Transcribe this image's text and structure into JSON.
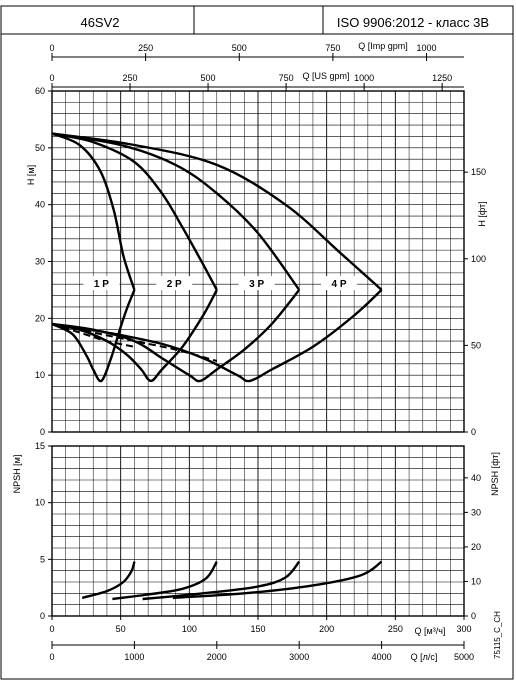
{
  "header": {
    "model": "46SV2",
    "standard": "ISO 9906:2012 - класс 3B"
  },
  "side_code": "75115_C_CH",
  "chart_data": {
    "type": "line",
    "axes": {
      "q_m3h": {
        "label": "Q [м³/ч]",
        "range": [
          0,
          300
        ],
        "ticks": [
          0,
          50,
          100,
          150,
          200,
          250,
          300
        ]
      },
      "q_ls": {
        "label": "Q [л/с]",
        "range": [
          0,
          5000
        ],
        "ticks": [
          0,
          1000,
          2000,
          3000,
          4000,
          5000
        ]
      },
      "q_us_gpm": {
        "label": "Q [US gpm]",
        "range": [
          0,
          1320
        ],
        "ticks": [
          0,
          250,
          500,
          750,
          1000,
          1250
        ]
      },
      "q_imp_gpm": {
        "label": "Q [Imp gpm]",
        "range": [
          0,
          1100
        ],
        "ticks": [
          0,
          250,
          500,
          750,
          1000
        ]
      },
      "head_m": {
        "label": "H [м]",
        "range": [
          0,
          60
        ],
        "ticks": [
          0,
          10,
          20,
          30,
          40,
          50,
          60
        ]
      },
      "head_ft": {
        "label": "H [фт]",
        "ticks": [
          0,
          50,
          100,
          150
        ]
      },
      "npsh_m": {
        "label": "NPSH [м]",
        "range": [
          0,
          15
        ],
        "ticks": [
          0,
          5,
          10,
          15
        ]
      },
      "npsh_ft": {
        "label": "NPSH [фт]",
        "ticks": [
          0,
          10,
          20,
          30,
          40
        ]
      }
    },
    "grid": true,
    "head_series": [
      {
        "name": "1 P",
        "label_at": [
          36,
          25.5
        ],
        "curve": [
          [
            0,
            52.5
          ],
          [
            20,
            50.5
          ],
          [
            35,
            46
          ],
          [
            45,
            39
          ],
          [
            52,
            31
          ],
          [
            60,
            25
          ]
        ],
        "envelope": [
          [
            0,
            19
          ],
          [
            15,
            17.2
          ],
          [
            25,
            13.5
          ],
          [
            30,
            11
          ],
          [
            36,
            9
          ],
          [
            43,
            13
          ],
          [
            50,
            18.5
          ],
          [
            55,
            22
          ],
          [
            60,
            25
          ]
        ]
      },
      {
        "name": "2 P",
        "label_at": [
          89,
          25.5
        ],
        "curve": [
          [
            0,
            52.5
          ],
          [
            30,
            51
          ],
          [
            60,
            47.5
          ],
          [
            80,
            42
          ],
          [
            95,
            36
          ],
          [
            110,
            29.5
          ],
          [
            120,
            25
          ]
        ],
        "envelope": [
          [
            0,
            19
          ],
          [
            20,
            18
          ],
          [
            40,
            16
          ],
          [
            55,
            13.5
          ],
          [
            65,
            11
          ],
          [
            72,
            9
          ],
          [
            80,
            11
          ],
          [
            95,
            15
          ],
          [
            110,
            20.5
          ],
          [
            120,
            25
          ]
        ]
      },
      {
        "name": "3 P",
        "label_at": [
          149,
          25.5
        ],
        "curve": [
          [
            0,
            52.5
          ],
          [
            50,
            50.5
          ],
          [
            90,
            47
          ],
          [
            120,
            42
          ],
          [
            150,
            35
          ],
          [
            180,
            25
          ]
        ],
        "envelope": [
          [
            0,
            19
          ],
          [
            30,
            18
          ],
          [
            60,
            16
          ],
          [
            80,
            13
          ],
          [
            100,
            10
          ],
          [
            108,
            9
          ],
          [
            120,
            11
          ],
          [
            140,
            14.5
          ],
          [
            160,
            19
          ],
          [
            180,
            25
          ]
        ]
      },
      {
        "name": "4 P",
        "label_at": [
          209,
          25.5
        ],
        "curve": [
          [
            0,
            52.5
          ],
          [
            60,
            50.5
          ],
          [
            120,
            47
          ],
          [
            170,
            40
          ],
          [
            210,
            31.5
          ],
          [
            240,
            25
          ]
        ],
        "envelope": [
          [
            0,
            19
          ],
          [
            40,
            17.5
          ],
          [
            80,
            15.5
          ],
          [
            110,
            13
          ],
          [
            135,
            10
          ],
          [
            144,
            9
          ],
          [
            160,
            11
          ],
          [
            190,
            15
          ],
          [
            220,
            20.5
          ],
          [
            240,
            25
          ]
        ]
      }
    ],
    "npsh_dashed": [
      [
        [
          0,
          19
        ],
        [
          20,
          17.5
        ],
        [
          40,
          16
        ],
        [
          60,
          15
        ]
      ],
      [
        [
          0,
          19
        ],
        [
          30,
          17.5
        ],
        [
          60,
          16
        ],
        [
          90,
          14.5
        ],
        [
          120,
          12.5
        ]
      ]
    ],
    "npsh_series": [
      [
        [
          22,
          1.6
        ],
        [
          40,
          2.2
        ],
        [
          52,
          3
        ],
        [
          58,
          4
        ],
        [
          60,
          4.8
        ]
      ],
      [
        [
          44,
          1.5
        ],
        [
          70,
          1.9
        ],
        [
          95,
          2.4
        ],
        [
          112,
          3.3
        ],
        [
          120,
          4.8
        ]
      ],
      [
        [
          66,
          1.5
        ],
        [
          110,
          2
        ],
        [
          150,
          2.6
        ],
        [
          170,
          3.4
        ],
        [
          180,
          4.8
        ]
      ],
      [
        [
          88,
          1.6
        ],
        [
          140,
          2
        ],
        [
          190,
          2.7
        ],
        [
          225,
          3.6
        ],
        [
          240,
          4.8
        ]
      ]
    ]
  }
}
